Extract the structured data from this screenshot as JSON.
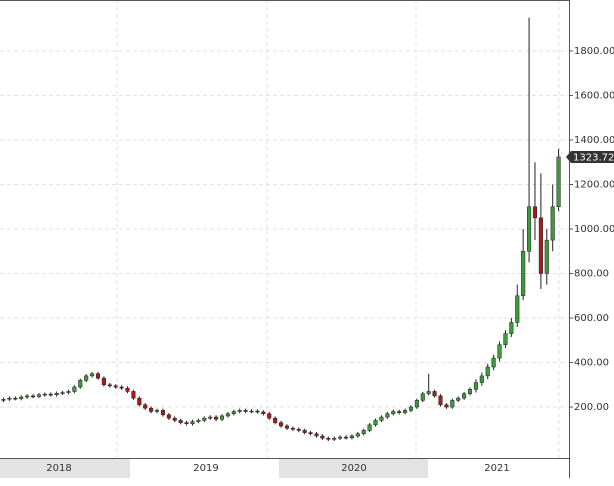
{
  "chart_data": {
    "type": "candlestick",
    "x_labels": [
      "2018",
      "2019",
      "2020",
      "2021"
    ],
    "open": [
      230,
      235,
      240,
      238,
      245,
      250,
      248,
      255,
      258,
      255,
      262,
      265,
      270,
      290,
      320,
      340,
      350,
      330,
      300,
      295,
      290,
      285,
      270,
      240,
      210,
      195,
      180,
      185,
      165,
      150,
      140,
      130,
      125,
      135,
      140,
      150,
      155,
      145,
      160,
      170,
      180,
      185,
      180,
      182,
      178,
      170,
      150,
      130,
      115,
      105,
      100,
      95,
      85,
      80,
      70,
      60,
      55,
      60,
      65,
      62,
      70,
      80,
      95,
      120,
      140,
      155,
      170,
      180,
      175,
      185,
      200,
      230,
      260,
      270,
      250,
      210,
      200,
      230,
      240,
      260,
      280,
      310,
      340,
      380,
      420,
      480,
      530,
      580,
      700,
      900,
      1100,
      1050,
      800,
      950,
      1100
    ],
    "high": [
      243,
      248,
      248,
      253,
      258,
      258,
      263,
      266,
      266,
      270,
      273,
      278,
      298,
      328,
      348,
      358,
      358,
      338,
      308,
      303,
      298,
      293,
      278,
      248,
      218,
      203,
      193,
      193,
      173,
      158,
      148,
      138,
      143,
      148,
      158,
      163,
      163,
      168,
      178,
      188,
      193,
      193,
      190,
      190,
      186,
      178,
      158,
      138,
      123,
      113,
      108,
      103,
      93,
      88,
      78,
      68,
      68,
      73,
      73,
      78,
      88,
      103,
      128,
      148,
      163,
      178,
      188,
      188,
      193,
      208,
      238,
      268,
      350,
      278,
      258,
      218,
      238,
      248,
      268,
      288,
      325,
      355,
      395,
      435,
      495,
      545,
      600,
      750,
      1000,
      1950,
      1300,
      1250,
      1000,
      1200,
      1360
    ],
    "low": [
      222,
      227,
      230,
      230,
      237,
      240,
      240,
      247,
      247,
      247,
      254,
      257,
      262,
      282,
      312,
      332,
      322,
      292,
      287,
      282,
      277,
      262,
      232,
      202,
      187,
      172,
      172,
      157,
      142,
      132,
      122,
      117,
      117,
      127,
      132,
      142,
      137,
      137,
      152,
      162,
      172,
      172,
      172,
      170,
      162,
      142,
      122,
      107,
      97,
      92,
      87,
      77,
      72,
      62,
      52,
      47,
      47,
      52,
      54,
      54,
      62,
      72,
      87,
      112,
      132,
      147,
      162,
      167,
      167,
      177,
      192,
      222,
      252,
      242,
      202,
      192,
      192,
      222,
      232,
      252,
      265,
      295,
      325,
      365,
      405,
      465,
      515,
      560,
      680,
      850,
      950,
      730,
      750,
      900,
      1080
    ],
    "close": [
      235,
      240,
      238,
      245,
      250,
      248,
      255,
      258,
      255,
      262,
      265,
      270,
      290,
      320,
      340,
      350,
      330,
      300,
      295,
      290,
      285,
      270,
      240,
      210,
      195,
      180,
      185,
      165,
      150,
      140,
      130,
      125,
      135,
      140,
      150,
      155,
      145,
      160,
      170,
      180,
      185,
      180,
      182,
      178,
      170,
      150,
      130,
      115,
      105,
      100,
      95,
      85,
      80,
      70,
      60,
      55,
      60,
      65,
      62,
      70,
      80,
      95,
      120,
      140,
      155,
      170,
      180,
      175,
      185,
      200,
      230,
      260,
      270,
      250,
      210,
      200,
      230,
      240,
      260,
      280,
      310,
      340,
      380,
      420,
      480,
      530,
      580,
      700,
      900,
      1100,
      1050,
      800,
      950,
      1100,
      1323.72
    ],
    "up_color": "#3d9a3d",
    "down_color": "#a51c1c",
    "last_price": 1323.72,
    "ylim": [
      -29,
      2029
    ],
    "yticks": [
      {
        "value": 200,
        "label": "200.00"
      },
      {
        "value": 400,
        "label": "400.00"
      },
      {
        "value": 600,
        "label": "600.00"
      },
      {
        "value": 800,
        "label": "800.00"
      },
      {
        "value": 1000,
        "label": "1000.00"
      },
      {
        "value": 1200,
        "label": "1200.00"
      },
      {
        "value": 1400,
        "label": "1400.00"
      },
      {
        "value": 1600,
        "label": "1600.00"
      },
      {
        "value": 1800,
        "label": "1800.00"
      }
    ],
    "grid": true
  }
}
